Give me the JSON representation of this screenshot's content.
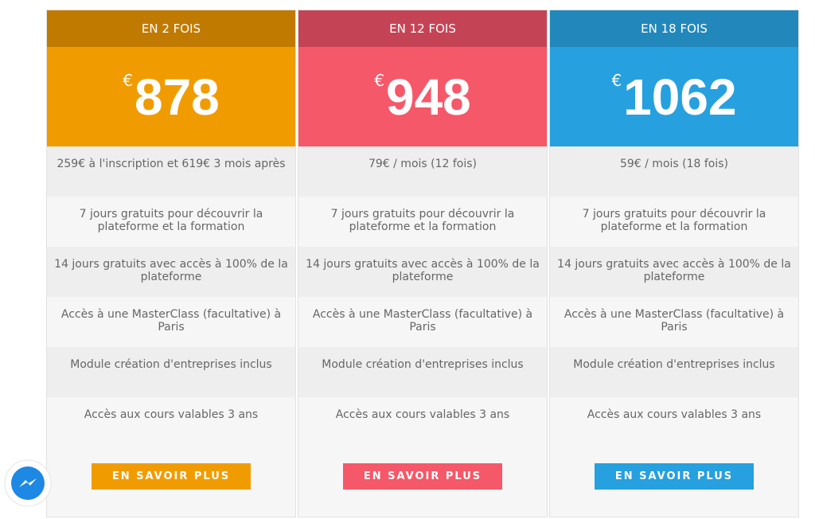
{
  "plans": [
    {
      "header": "EN 2 FOIS",
      "currency": "€",
      "price": "878",
      "features": [
        "259€ à l'inscription et 619€ 3 mois après",
        "7 jours gratuits pour découvrir la plateforme et la formation",
        "14 jours gratuits avec accès à 100% de la plateforme",
        "Accès à une MasterClass (facultative) à Paris",
        "Module création d'entreprises inclus",
        "Accès aux cours valables 3 ans"
      ],
      "button": "EN SAVOIR PLUS"
    },
    {
      "header": "EN 12 FOIS",
      "currency": "€",
      "price": "948",
      "features": [
        "79€ / mois (12 fois)",
        "7 jours gratuits pour découvrir la plateforme et la formation",
        "14 jours gratuits avec accès à 100% de la plateforme",
        "Accès à une MasterClass (facultative) à Paris",
        "Module création d'entreprises inclus",
        "Accès aux cours valables 3 ans"
      ],
      "button": "EN SAVOIR PLUS"
    },
    {
      "header": "EN 18 FOIS",
      "currency": "€",
      "price": "1062",
      "features": [
        "59€ / mois (18 fois)",
        "7 jours gratuits pour découvrir la plateforme et la formation",
        "14 jours gratuits avec accès à 100% de la plateforme",
        "Accès à une MasterClass (facultative) à Paris",
        "Module création d'entreprises inclus",
        "Accès aux cours valables 3 ans"
      ],
      "button": "EN SAVOIR PLUS"
    }
  ]
}
